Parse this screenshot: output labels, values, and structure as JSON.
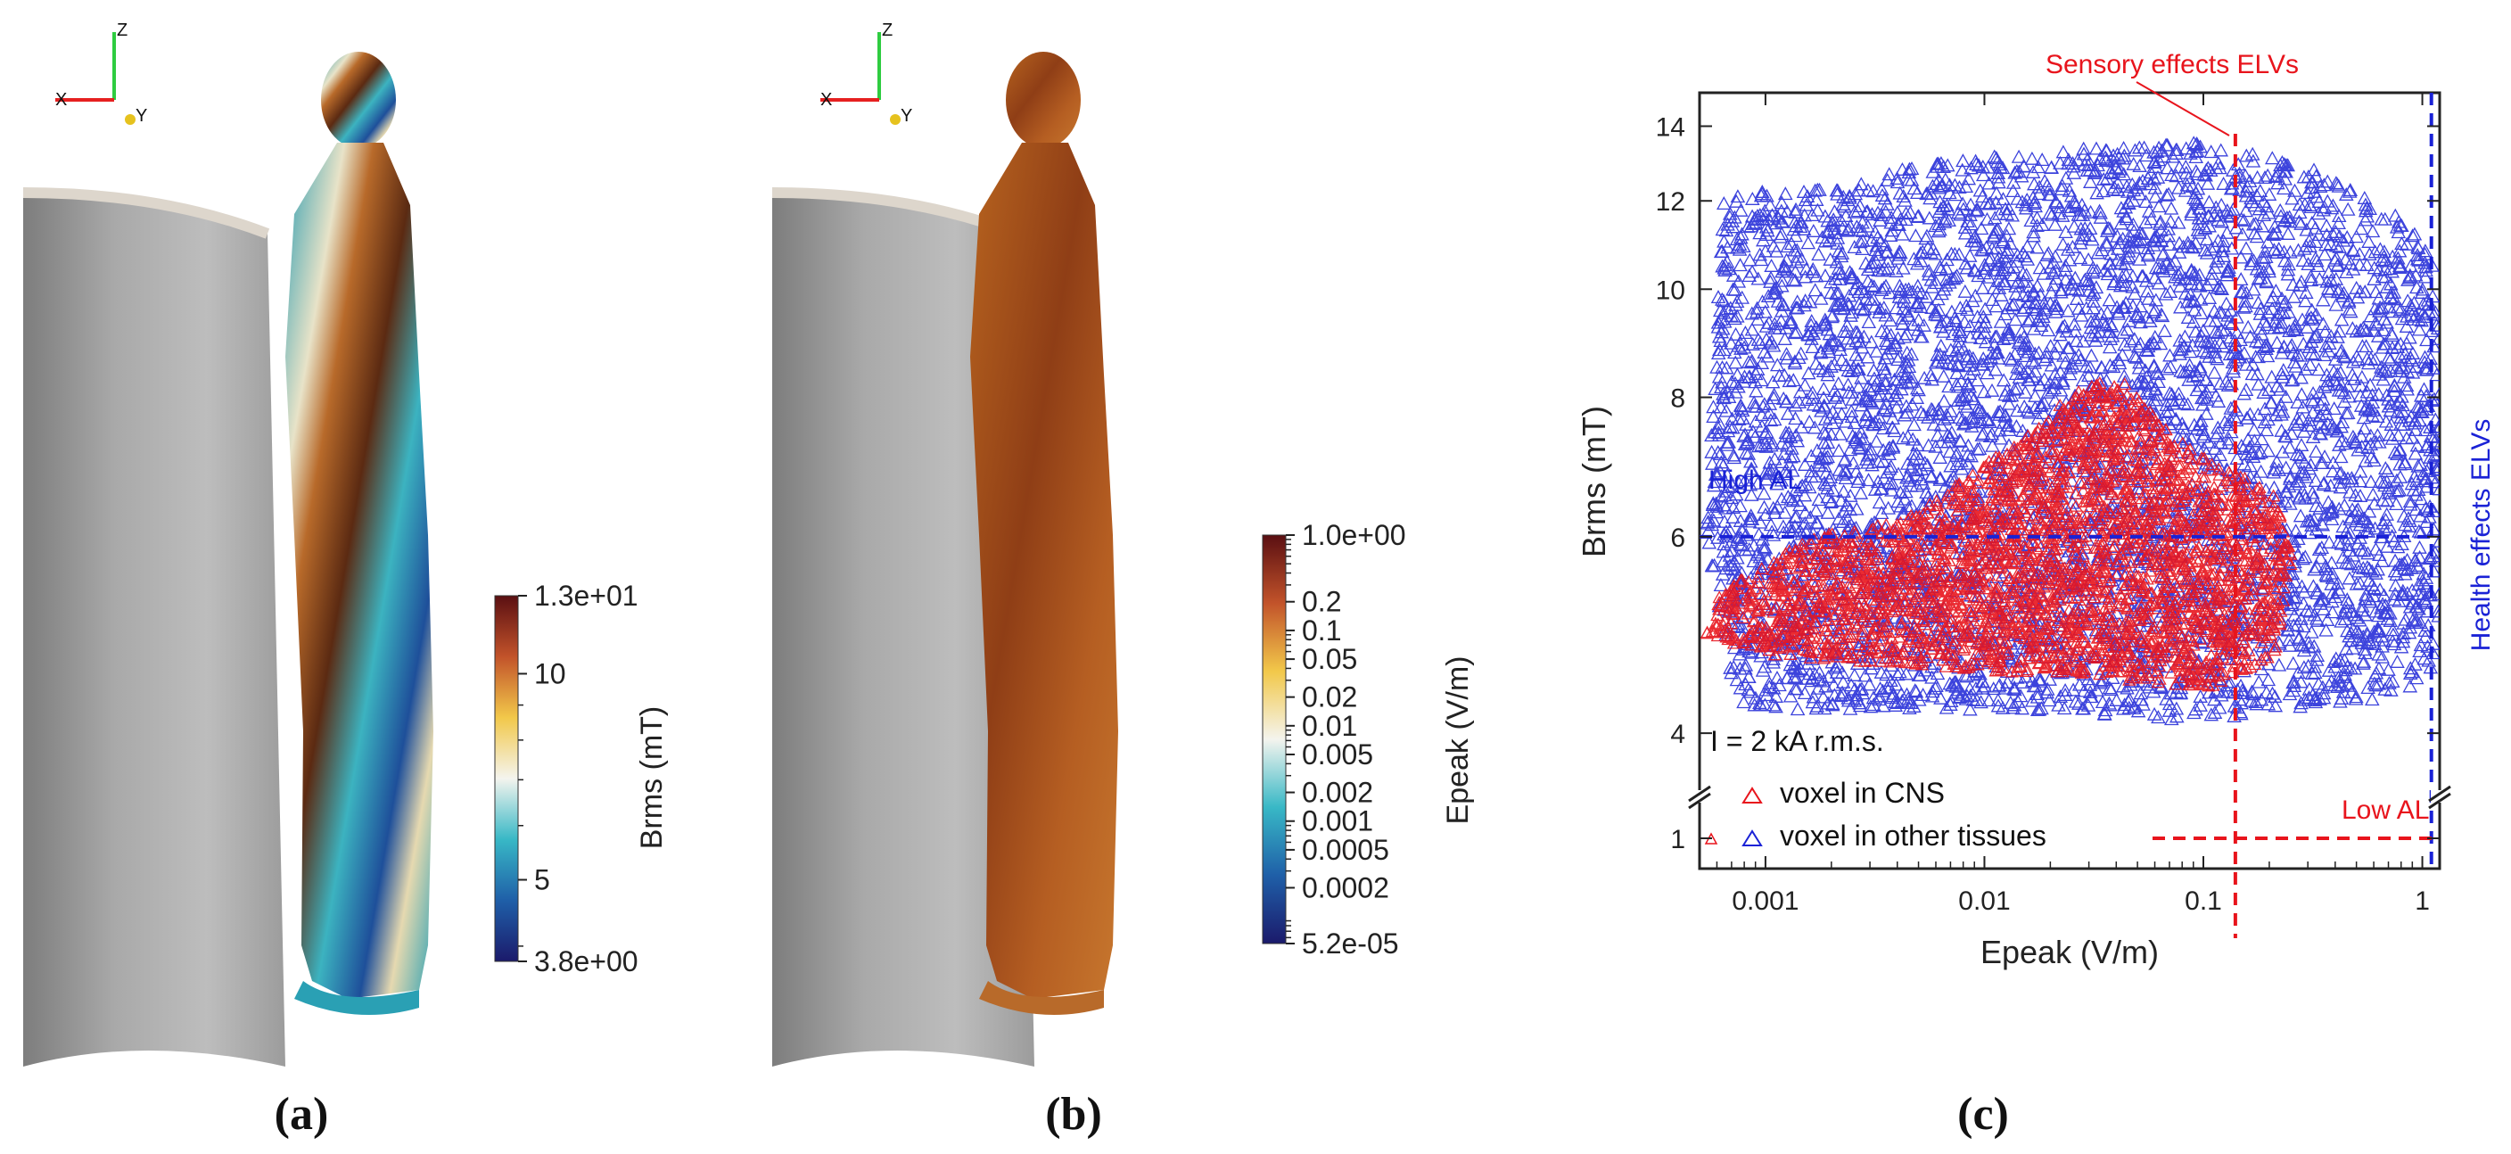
{
  "panels": {
    "a": {
      "caption": "(a)",
      "colorbar": {
        "title": "Brms (mT)",
        "ticks": [
          {
            "label": "1.3e+01",
            "value": 13
          },
          {
            "label": "10",
            "value": 10
          },
          {
            "label": "5",
            "value": 5
          },
          {
            "label": "3.8e+00",
            "value": 3.8
          }
        ],
        "range": [
          3.8,
          13
        ],
        "scale": "log",
        "colormap": [
          "#1b1a6b",
          "#1f5fa8",
          "#38b8c6",
          "#f4f4ee",
          "#f2c84a",
          "#c2532a",
          "#5a0f12"
        ]
      },
      "axes_triad": {
        "x": "X",
        "y": "Y",
        "z": "Z"
      }
    },
    "b": {
      "caption": "(b)",
      "colorbar": {
        "title": "Epeak (V/m)",
        "ticks": [
          {
            "label": "1.0e+00",
            "value": 1.0
          },
          {
            "label": "0.2",
            "value": 0.2
          },
          {
            "label": "0.1",
            "value": 0.1
          },
          {
            "label": "0.05",
            "value": 0.05
          },
          {
            "label": "0.02",
            "value": 0.02
          },
          {
            "label": "0.01",
            "value": 0.01
          },
          {
            "label": "0.005",
            "value": 0.005
          },
          {
            "label": "0.002",
            "value": 0.002
          },
          {
            "label": "0.001",
            "value": 0.001
          },
          {
            "label": "0.0005",
            "value": 0.0005
          },
          {
            "label": "0.0002",
            "value": 0.0002
          },
          {
            "label": "5.2e-05",
            "value": 5.2e-05
          }
        ],
        "range": [
          5.2e-05,
          1.0
        ],
        "scale": "log",
        "colormap": [
          "#1b1a6b",
          "#1f5fa8",
          "#38b8c6",
          "#f4f4ee",
          "#f2c84a",
          "#c2532a",
          "#5a0f12"
        ]
      },
      "axes_triad": {
        "x": "X",
        "y": "Y",
        "z": "Z"
      }
    },
    "c": {
      "caption": "(c)"
    }
  },
  "chart_data": {
    "type": "scatter",
    "xlabel": "Epeak (V/m)",
    "ylabel": "Brms (mT)",
    "xscale": "log",
    "yscale": "log",
    "xlim": [
      0.0005,
      1.2
    ],
    "ylim": [
      3.8,
      15
    ],
    "y_broken_axis_lower_value": 1,
    "x_ticks": [
      {
        "label": "0.001",
        "value": 0.001
      },
      {
        "label": "0.01",
        "value": 0.01
      },
      {
        "label": "0.1",
        "value": 0.1
      },
      {
        "label": "1",
        "value": 1
      }
    ],
    "y_ticks": [
      {
        "label": "4",
        "value": 4
      },
      {
        "label": "6",
        "value": 6
      },
      {
        "label": "8",
        "value": 8
      },
      {
        "label": "10",
        "value": 10
      },
      {
        "label": "12",
        "value": 12
      },
      {
        "label": "14",
        "value": 14
      },
      {
        "label": "1",
        "value": 1
      }
    ],
    "series": [
      {
        "name": "voxel in CNS",
        "color": "#e8141c",
        "marker": "triangle",
        "envelope": [
          [
            0.0005,
            4.9
          ],
          [
            0.0006,
            5.4
          ],
          [
            0.0015,
            6.0
          ],
          [
            0.004,
            6.2
          ],
          [
            0.008,
            6.8
          ],
          [
            0.016,
            7.6
          ],
          [
            0.03,
            8.3
          ],
          [
            0.05,
            8.2
          ],
          [
            0.06,
            7.6
          ],
          [
            0.1,
            7.0
          ],
          [
            0.2,
            6.6
          ],
          [
            0.24,
            5.7
          ],
          [
            0.2,
            4.7
          ],
          [
            0.1,
            4.4
          ],
          [
            0.02,
            4.5
          ],
          [
            0.005,
            4.6
          ],
          [
            0.001,
            4.7
          ]
        ]
      },
      {
        "name": "voxel in other tissues",
        "color": "#1a22d6",
        "marker": "triangle",
        "envelope": [
          [
            0.0006,
            12.2
          ],
          [
            0.002,
            12.3
          ],
          [
            0.005,
            13.0
          ],
          [
            0.03,
            13.4
          ],
          [
            0.1,
            13.6
          ],
          [
            0.3,
            12.8
          ],
          [
            0.8,
            11.5
          ],
          [
            1.1,
            10.5
          ],
          [
            1.15,
            6.0
          ],
          [
            1.1,
            4.5
          ],
          [
            0.6,
            4.3
          ],
          [
            0.1,
            4.1
          ],
          [
            0.01,
            4.2
          ],
          [
            0.002,
            4.2
          ],
          [
            0.0007,
            4.2
          ],
          [
            0.0005,
            6.0
          ]
        ]
      }
    ],
    "reference_lines": [
      {
        "label": "Sensory effects ELVs",
        "orientation": "vertical",
        "value": 0.14,
        "color": "#e8141c"
      },
      {
        "label": "Health effects ELVs",
        "orientation": "vertical",
        "value": 1.1,
        "color": "#1a22d6"
      },
      {
        "label": "High AL",
        "orientation": "horizontal",
        "value": 6,
        "color": "#1a22d6"
      },
      {
        "label": "Low AL",
        "orientation": "horizontal",
        "value": 1,
        "color": "#e8141c"
      }
    ],
    "annotation": "I = 2 kA r.m.s.",
    "legend_position": "bottom-left"
  }
}
